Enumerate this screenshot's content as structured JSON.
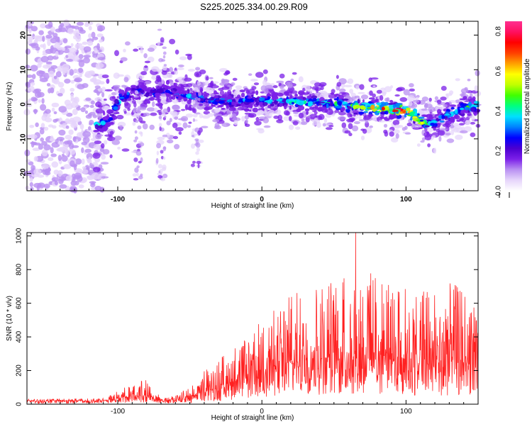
{
  "title": "S225.2025.334.00.29.R09",
  "chart_data": [
    {
      "type": "heatmap",
      "name": "spectrogram",
      "xlabel": "Height of straight line (km)",
      "ylabel": "Frequency (Hz)",
      "xlim": [
        -163,
        150
      ],
      "ylim": [
        -25,
        24
      ],
      "x_ticks": [
        -100,
        0,
        100
      ],
      "y_ticks": [
        -20,
        -10,
        0,
        10,
        20
      ],
      "colorbar": {
        "label": "Normalized spectral amplitude",
        "range": [
          0,
          0.85
        ],
        "ticks": [
          0.0,
          0.2,
          0.4,
          0.6,
          0.8
        ],
        "tick_labels": [
          "0.0",
          "0.2",
          "0.4",
          "0.6",
          "0.8"
        ],
        "colors": [
          "#ffffff",
          "#e6d5fb",
          "#b990f2",
          "#7b1fe8",
          "#4b00d0",
          "#0000ff",
          "#0080ff",
          "#00e0ff",
          "#00ff80",
          "#40ff00",
          "#c0ff00",
          "#ffff00",
          "#ffa000",
          "#ff4000",
          "#ff0000",
          "#ff1060",
          "#ff3090"
        ]
      },
      "ridge": {
        "x": [
          -113,
          -105,
          -98,
          -88,
          -78,
          -68,
          -58,
          -45,
          -30,
          -15,
          0,
          15,
          30,
          45,
          55,
          62,
          70,
          80,
          90,
          100,
          106,
          110,
          114,
          120,
          130,
          140,
          150
        ],
        "freq": [
          -6,
          -4,
          2,
          4,
          3,
          4,
          3,
          2,
          1,
          1,
          1,
          1,
          0.5,
          0.5,
          0,
          -0.5,
          -1,
          -1,
          -1.5,
          -2,
          -3,
          -5,
          -6,
          -5,
          -3,
          -1,
          0
        ],
        "amplitude": [
          0.45,
          0.35,
          0.35,
          0.3,
          0.3,
          0.3,
          0.35,
          0.35,
          0.35,
          0.38,
          0.38,
          0.4,
          0.45,
          0.45,
          0.5,
          0.55,
          0.6,
          0.7,
          0.8,
          0.82,
          0.7,
          0.6,
          0.5,
          0.45,
          0.45,
          0.45,
          0.45
        ]
      }
    },
    {
      "type": "line",
      "name": "snr",
      "xlabel": "Height of straight line (km)",
      "ylabel": "SNR (10 * v/v)",
      "xlim": [
        -163,
        150
      ],
      "ylim": [
        0,
        1020
      ],
      "x_ticks": [
        -100,
        0,
        100
      ],
      "y_ticks": [
        0,
        200,
        400,
        600,
        800,
        1000
      ],
      "color": "#ff2020",
      "envelope": {
        "x": [
          -163,
          -110,
          -100,
          -90,
          -80,
          -72,
          -65,
          -50,
          -40,
          -30,
          -20,
          -10,
          0,
          10,
          20,
          30,
          40,
          50,
          60,
          70,
          80,
          90,
          100,
          110,
          120,
          130,
          140,
          150
        ],
        "baseline": [
          20,
          20,
          35,
          45,
          50,
          30,
          20,
          40,
          70,
          100,
          130,
          170,
          200,
          230,
          240,
          260,
          270,
          280,
          290,
          290,
          290,
          280,
          270,
          260,
          250,
          250,
          240,
          230
        ],
        "peak": [
          30,
          35,
          80,
          120,
          150,
          80,
          40,
          100,
          200,
          280,
          340,
          420,
          500,
          580,
          650,
          700,
          720,
          760,
          800,
          800,
          780,
          720,
          700,
          680,
          700,
          720,
          700,
          680
        ]
      },
      "max_marker": {
        "x": 65,
        "y": 1020
      }
    }
  ]
}
